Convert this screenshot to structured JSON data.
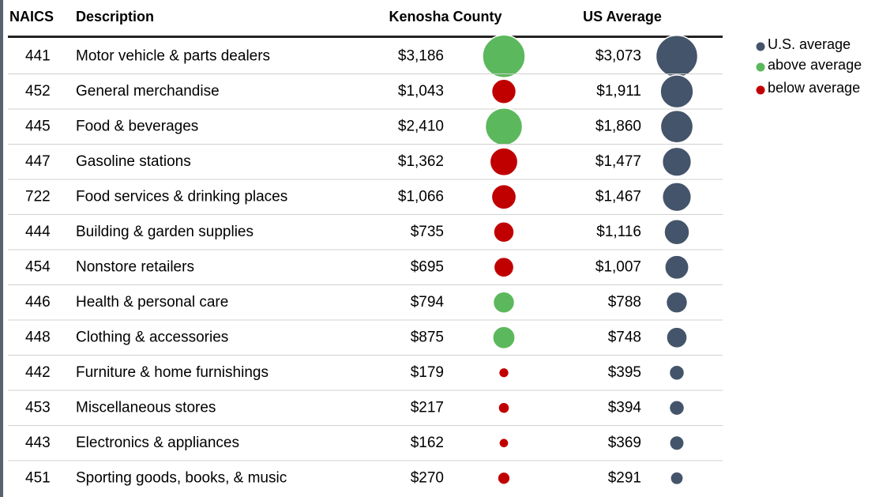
{
  "table": {
    "headers": [
      "NAICS",
      "Description",
      "Kenosha County",
      "US Average"
    ],
    "rows": [
      {
        "naics": "441",
        "description": "Motor vehicle & parts dealers",
        "kenosha": 3186,
        "kenosha_label": "$3,186",
        "us": 3073,
        "us_label": "$3,073"
      },
      {
        "naics": "452",
        "description": "General merchandise",
        "kenosha": 1043,
        "kenosha_label": "$1,043",
        "us": 1911,
        "us_label": "$1,911"
      },
      {
        "naics": "445",
        "description": "Food & beverages",
        "kenosha": 2410,
        "kenosha_label": "$2,410",
        "us": 1860,
        "us_label": "$1,860"
      },
      {
        "naics": "447",
        "description": "Gasoline stations",
        "kenosha": 1362,
        "kenosha_label": "$1,362",
        "us": 1477,
        "us_label": "$1,477"
      },
      {
        "naics": "722",
        "description": "Food services & drinking places",
        "kenosha": 1066,
        "kenosha_label": "$1,066",
        "us": 1467,
        "us_label": "$1,467"
      },
      {
        "naics": "444",
        "description": "Building & garden supplies",
        "kenosha": 735,
        "kenosha_label": "$735",
        "us": 1116,
        "us_label": "$1,116"
      },
      {
        "naics": "454",
        "description": "Nonstore retailers",
        "kenosha": 695,
        "kenosha_label": "$695",
        "us": 1007,
        "us_label": "$1,007"
      },
      {
        "naics": "446",
        "description": "Health & personal care",
        "kenosha": 794,
        "kenosha_label": "$794",
        "us": 788,
        "us_label": "$788"
      },
      {
        "naics": "448",
        "description": "Clothing & accessories",
        "kenosha": 875,
        "kenosha_label": "$875",
        "us": 748,
        "us_label": "$748"
      },
      {
        "naics": "442",
        "description": "Furniture & home furnishings",
        "kenosha": 179,
        "kenosha_label": "$179",
        "us": 395,
        "us_label": "$395"
      },
      {
        "naics": "453",
        "description": "Miscellaneous stores",
        "kenosha": 217,
        "kenosha_label": "$217",
        "us": 394,
        "us_label": "$394"
      },
      {
        "naics": "443",
        "description": "Electronics & appliances",
        "kenosha": 162,
        "kenosha_label": "$162",
        "us": 369,
        "us_label": "$369"
      },
      {
        "naics": "451",
        "description": "Sporting goods, books, & music",
        "kenosha": 270,
        "kenosha_label": "$270",
        "us": 291,
        "us_label": "$291"
      }
    ]
  },
  "legend": [
    {
      "label": "U.S. average",
      "color": "#44546a"
    },
    {
      "label": "above average",
      "color": "#5cb85c"
    },
    {
      "label": "below average",
      "color": "#c00000"
    }
  ]
}
